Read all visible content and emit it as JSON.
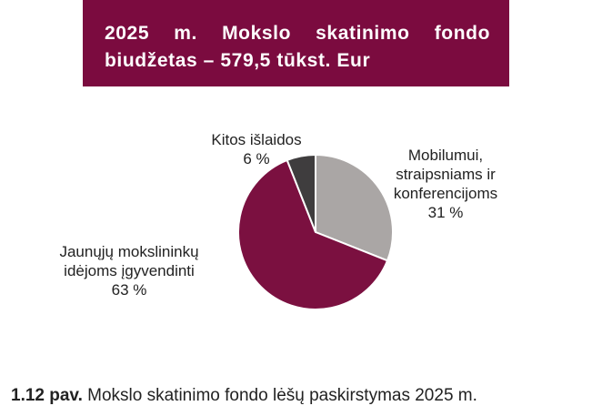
{
  "chart_data": {
    "type": "pie",
    "title": "2025 m. Mokslo skatinimo fondo biudžetas – 579,5 tūkst. Eur",
    "categories": [
      "Mobilumui, straipsniams ir konferencijoms",
      "Jaunųjų mokslininkų idėjoms įgyvendinti",
      "Kitos išlaidos"
    ],
    "values": [
      31,
      63,
      6
    ],
    "value_labels": [
      "31 %",
      "63 %",
      "6 %"
    ],
    "colors": [
      "#aaa6a5",
      "#7b1040",
      "#3f3d3e"
    ]
  },
  "caption": {
    "label": "1.12 pav.",
    "text": "Mokslo skatinimo fondo lėšų paskirstymas 2025 m."
  }
}
